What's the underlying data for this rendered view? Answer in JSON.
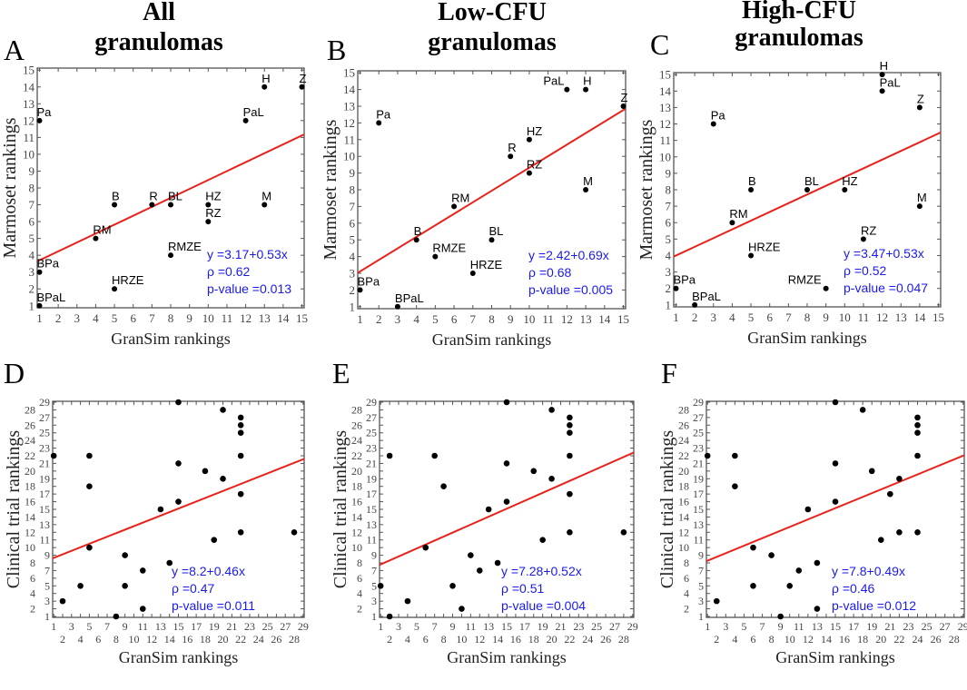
{
  "colors": {
    "regression": "#e8221b",
    "stats": "#1a1aee",
    "points": "#000000"
  },
  "chart_data": [
    {
      "type": "scatter",
      "panel": "A",
      "title": [
        "All",
        "granulomas"
      ],
      "xlabel": "GranSim rankings",
      "ylabel": "Marmoset rankings",
      "xlim": [
        1,
        15
      ],
      "ylim": [
        1,
        15
      ],
      "xticks": [
        1,
        2,
        3,
        4,
        5,
        6,
        7,
        8,
        9,
        10,
        11,
        12,
        13,
        14,
        15
      ],
      "yticks": [
        1,
        2,
        3,
        4,
        5,
        6,
        7,
        8,
        9,
        10,
        11,
        12,
        13,
        14,
        15
      ],
      "fit": {
        "intercept": 3.17,
        "slope": 0.53
      },
      "stats": [
        "y =3.17+0.53x",
        "ρ =0.62",
        "p-value =0.013"
      ],
      "points": [
        {
          "label": "Pa",
          "x": 1,
          "y": 12
        },
        {
          "label": "BPa",
          "x": 1,
          "y": 3
        },
        {
          "label": "BPaL",
          "x": 1,
          "y": 1
        },
        {
          "label": "RM",
          "x": 4,
          "y": 5
        },
        {
          "label": "B",
          "x": 5,
          "y": 7
        },
        {
          "label": "HRZE",
          "x": 5,
          "y": 2
        },
        {
          "label": "R",
          "x": 7,
          "y": 7
        },
        {
          "label": "BL",
          "x": 8,
          "y": 7
        },
        {
          "label": "RMZE",
          "x": 8,
          "y": 4
        },
        {
          "label": "HZ",
          "x": 10,
          "y": 7
        },
        {
          "label": "RZ",
          "x": 10,
          "y": 6
        },
        {
          "label": "PaL",
          "x": 12,
          "y": 12
        },
        {
          "label": "H",
          "x": 13,
          "y": 14
        },
        {
          "label": "M",
          "x": 13,
          "y": 7
        },
        {
          "label": "Z",
          "x": 15,
          "y": 14
        }
      ]
    },
    {
      "type": "scatter",
      "panel": "B",
      "title": [
        "Low-CFU",
        "granulomas"
      ],
      "xlabel": "GranSim rankings",
      "ylabel": "Marmoset rankings",
      "xlim": [
        1,
        15
      ],
      "ylim": [
        1,
        15
      ],
      "xticks": [
        1,
        2,
        3,
        4,
        5,
        6,
        7,
        8,
        9,
        10,
        11,
        12,
        13,
        14,
        15
      ],
      "yticks": [
        1,
        2,
        3,
        4,
        5,
        6,
        7,
        8,
        9,
        10,
        11,
        12,
        13,
        14,
        15
      ],
      "fit": {
        "intercept": 2.42,
        "slope": 0.69
      },
      "stats": [
        "y =2.42+0.69x",
        "ρ =0.68",
        "p-value =0.005"
      ],
      "points": [
        {
          "label": "BPa",
          "x": 1,
          "y": 2
        },
        {
          "label": "Pa",
          "x": 2,
          "y": 12
        },
        {
          "label": "BPaL",
          "x": 3,
          "y": 1
        },
        {
          "label": "B",
          "x": 4,
          "y": 5
        },
        {
          "label": "RMZE",
          "x": 5,
          "y": 4
        },
        {
          "label": "RM",
          "x": 6,
          "y": 7
        },
        {
          "label": "HRZE",
          "x": 7,
          "y": 3
        },
        {
          "label": "BL",
          "x": 8,
          "y": 5
        },
        {
          "label": "R",
          "x": 9,
          "y": 10
        },
        {
          "label": "HZ",
          "x": 10,
          "y": 11
        },
        {
          "label": "RZ",
          "x": 10,
          "y": 9
        },
        {
          "label": "PaL",
          "x": 12,
          "y": 14
        },
        {
          "label": "H",
          "x": 13,
          "y": 14
        },
        {
          "label": "M",
          "x": 13,
          "y": 8
        },
        {
          "label": "Z",
          "x": 15,
          "y": 13
        }
      ]
    },
    {
      "type": "scatter",
      "panel": "C",
      "title": [
        "High-CFU",
        "granulomas"
      ],
      "xlabel": "GranSim rankings",
      "ylabel": "Marmoset rankings",
      "xlim": [
        1,
        15
      ],
      "ylim": [
        1,
        15
      ],
      "xticks": [
        1,
        2,
        3,
        4,
        5,
        6,
        7,
        8,
        9,
        10,
        11,
        12,
        13,
        14,
        15
      ],
      "yticks": [
        1,
        2,
        3,
        4,
        5,
        6,
        7,
        8,
        9,
        10,
        11,
        12,
        13,
        14,
        15
      ],
      "fit": {
        "intercept": 3.47,
        "slope": 0.53
      },
      "stats": [
        "y =3.47+0.53x",
        "ρ =0.52",
        "p-value =0.047"
      ],
      "points": [
        {
          "label": "BPa",
          "x": 1,
          "y": 2
        },
        {
          "label": "BPaL",
          "x": 2,
          "y": 1
        },
        {
          "label": "Pa",
          "x": 3,
          "y": 12
        },
        {
          "label": "RM",
          "x": 4,
          "y": 6
        },
        {
          "label": "B",
          "x": 5,
          "y": 8
        },
        {
          "label": "HRZE",
          "x": 5,
          "y": 4
        },
        {
          "label": "BL",
          "x": 8,
          "y": 8
        },
        {
          "label": "RMZE",
          "x": 9,
          "y": 2
        },
        {
          "label": "HZ",
          "x": 10,
          "y": 8
        },
        {
          "label": "RZ",
          "x": 11,
          "y": 5
        },
        {
          "label": "H",
          "x": 12,
          "y": 15
        },
        {
          "label": "PaL",
          "x": 12,
          "y": 14
        },
        {
          "label": "Z",
          "x": 14,
          "y": 13
        },
        {
          "label": "M",
          "x": 14,
          "y": 7
        }
      ]
    },
    {
      "type": "scatter",
      "panel": "D",
      "title": [],
      "xlabel": "GranSim rankings",
      "ylabel": "Clinical trial rankings",
      "xlim": [
        1,
        29
      ],
      "ylim": [
        1,
        29
      ],
      "xticks": [
        1,
        2,
        3,
        4,
        5,
        6,
        7,
        8,
        9,
        10,
        11,
        12,
        13,
        14,
        15,
        16,
        17,
        18,
        19,
        20,
        21,
        22,
        23,
        24,
        25,
        26,
        27,
        28,
        29
      ],
      "yticks": [
        1,
        2,
        3,
        4,
        5,
        6,
        7,
        8,
        9,
        10,
        11,
        12,
        13,
        14,
        15,
        16,
        17,
        18,
        19,
        20,
        21,
        22,
        23,
        24,
        25,
        26,
        27,
        28,
        29
      ],
      "fit": {
        "intercept": 8.2,
        "slope": 0.46
      },
      "stats": [
        "y =8.2+0.46x",
        "ρ =0.47",
        "p-value =0.011"
      ],
      "points": [
        {
          "x": 1,
          "y": 22
        },
        {
          "x": 2,
          "y": 3
        },
        {
          "x": 4,
          "y": 5
        },
        {
          "x": 5,
          "y": 22
        },
        {
          "x": 5,
          "y": 18
        },
        {
          "x": 5,
          "y": 10
        },
        {
          "x": 8,
          "y": 1
        },
        {
          "x": 9,
          "y": 9
        },
        {
          "x": 9,
          "y": 5
        },
        {
          "x": 11,
          "y": 7
        },
        {
          "x": 11,
          "y": 2
        },
        {
          "x": 13,
          "y": 15
        },
        {
          "x": 14,
          "y": 8
        },
        {
          "x": 15,
          "y": 29
        },
        {
          "x": 15,
          "y": 21
        },
        {
          "x": 15,
          "y": 16
        },
        {
          "x": 18,
          "y": 20
        },
        {
          "x": 19,
          "y": 11
        },
        {
          "x": 20,
          "y": 28
        },
        {
          "x": 20,
          "y": 19
        },
        {
          "x": 22,
          "y": 27
        },
        {
          "x": 22,
          "y": 26
        },
        {
          "x": 22,
          "y": 25
        },
        {
          "x": 22,
          "y": 22
        },
        {
          "x": 22,
          "y": 17
        },
        {
          "x": 22,
          "y": 12
        },
        {
          "x": 28,
          "y": 12
        }
      ]
    },
    {
      "type": "scatter",
      "panel": "E",
      "title": [],
      "xlabel": "GranSim rankings",
      "ylabel": "Clinical trial rankings",
      "xlim": [
        1,
        29
      ],
      "ylim": [
        1,
        29
      ],
      "xticks": [
        1,
        2,
        3,
        4,
        5,
        6,
        7,
        8,
        9,
        10,
        11,
        12,
        13,
        14,
        15,
        16,
        17,
        18,
        19,
        20,
        21,
        22,
        23,
        24,
        25,
        26,
        27,
        28,
        29
      ],
      "yticks": [
        1,
        2,
        3,
        4,
        5,
        6,
        7,
        8,
        9,
        10,
        11,
        12,
        13,
        14,
        15,
        16,
        17,
        18,
        19,
        20,
        21,
        22,
        23,
        24,
        25,
        26,
        27,
        28,
        29
      ],
      "fit": {
        "intercept": 7.28,
        "slope": 0.52
      },
      "stats": [
        "y =7.28+0.52x",
        "ρ =0.51",
        "p-value =0.004"
      ],
      "points": [
        {
          "x": 1,
          "y": 5
        },
        {
          "x": 2,
          "y": 22
        },
        {
          "x": 2,
          "y": 1
        },
        {
          "x": 4,
          "y": 3
        },
        {
          "x": 6,
          "y": 10
        },
        {
          "x": 7,
          "y": 22
        },
        {
          "x": 8,
          "y": 18
        },
        {
          "x": 9,
          "y": 5
        },
        {
          "x": 10,
          "y": 2
        },
        {
          "x": 11,
          "y": 9
        },
        {
          "x": 12,
          "y": 7
        },
        {
          "x": 13,
          "y": 15
        },
        {
          "x": 14,
          "y": 8
        },
        {
          "x": 15,
          "y": 29
        },
        {
          "x": 15,
          "y": 21
        },
        {
          "x": 15,
          "y": 16
        },
        {
          "x": 18,
          "y": 20
        },
        {
          "x": 19,
          "y": 11
        },
        {
          "x": 20,
          "y": 28
        },
        {
          "x": 20,
          "y": 19
        },
        {
          "x": 22,
          "y": 27
        },
        {
          "x": 22,
          "y": 26
        },
        {
          "x": 22,
          "y": 25
        },
        {
          "x": 22,
          "y": 22
        },
        {
          "x": 22,
          "y": 17
        },
        {
          "x": 22,
          "y": 12
        },
        {
          "x": 28,
          "y": 12
        }
      ]
    },
    {
      "type": "scatter",
      "panel": "F",
      "title": [],
      "xlabel": "GranSim rankings",
      "ylabel": "Clinical trial rankings",
      "xlim": [
        1,
        29
      ],
      "ylim": [
        1,
        29
      ],
      "xticks": [
        1,
        2,
        3,
        4,
        5,
        6,
        7,
        8,
        9,
        10,
        11,
        12,
        13,
        14,
        15,
        16,
        17,
        18,
        19,
        20,
        21,
        22,
        23,
        24,
        25,
        26,
        27,
        28,
        29
      ],
      "yticks": [
        1,
        2,
        3,
        4,
        5,
        6,
        7,
        8,
        9,
        10,
        11,
        12,
        13,
        14,
        15,
        16,
        17,
        18,
        19,
        20,
        21,
        22,
        23,
        24,
        25,
        26,
        27,
        28,
        29
      ],
      "fit": {
        "intercept": 7.8,
        "slope": 0.49
      },
      "stats": [
        "y =7.8+0.49x",
        "ρ =0.46",
        "p-value =0.012"
      ],
      "points": [
        {
          "x": 1,
          "y": 22
        },
        {
          "x": 2,
          "y": 3
        },
        {
          "x": 4,
          "y": 22
        },
        {
          "x": 4,
          "y": 18
        },
        {
          "x": 6,
          "y": 10
        },
        {
          "x": 6,
          "y": 5
        },
        {
          "x": 8,
          "y": 9
        },
        {
          "x": 9,
          "y": 1
        },
        {
          "x": 10,
          "y": 5
        },
        {
          "x": 11,
          "y": 7
        },
        {
          "x": 12,
          "y": 15
        },
        {
          "x": 13,
          "y": 8
        },
        {
          "x": 13,
          "y": 2
        },
        {
          "x": 15,
          "y": 29
        },
        {
          "x": 15,
          "y": 21
        },
        {
          "x": 15,
          "y": 16
        },
        {
          "x": 18,
          "y": 28
        },
        {
          "x": 19,
          "y": 20
        },
        {
          "x": 20,
          "y": 11
        },
        {
          "x": 21,
          "y": 17
        },
        {
          "x": 22,
          "y": 19
        },
        {
          "x": 22,
          "y": 12
        },
        {
          "x": 24,
          "y": 27
        },
        {
          "x": 24,
          "y": 26
        },
        {
          "x": 24,
          "y": 25
        },
        {
          "x": 24,
          "y": 22
        },
        {
          "x": 24,
          "y": 12
        }
      ]
    }
  ]
}
